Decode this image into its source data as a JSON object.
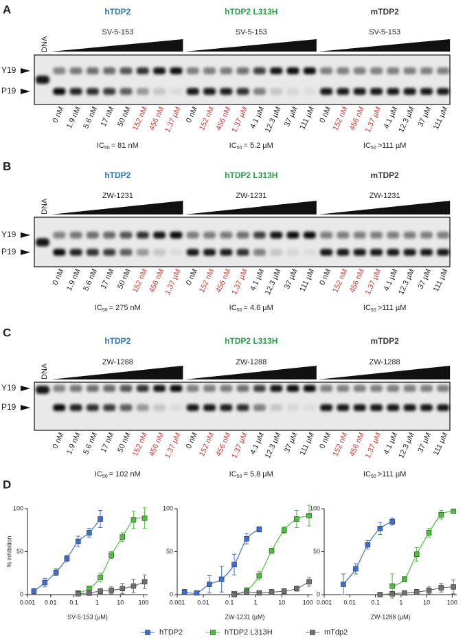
{
  "panels": [
    {
      "label": "A",
      "dna": "DNA",
      "y19": "Y19",
      "p19": "P19",
      "groups": [
        {
          "name": "hTDP2",
          "color": "#2e75b6",
          "compound": "SV-5-153",
          "lanes": [
            {
              "text": "0 nM",
              "color": "#231f20"
            },
            {
              "text": "1.9 nM",
              "color": "#231f20"
            },
            {
              "text": "5.6 nM",
              "color": "#231f20"
            },
            {
              "text": "17 nM",
              "color": "#231f20"
            },
            {
              "text": "50 nM",
              "color": "#231f20"
            },
            {
              "text": "152 nM",
              "color": "#d03a2f"
            },
            {
              "text": "456 nM",
              "color": "#d03a2f"
            },
            {
              "text": "1.37 µM",
              "color": "#d03a2f"
            }
          ],
          "ic50": {
            "symbol": "IC",
            "sub": "50",
            "value": "= 81 nM"
          }
        },
        {
          "name": "hTDP2 L313H",
          "color": "#2a9d48",
          "compound": "SV-5-153",
          "lanes": [
            {
              "text": "0 nM",
              "color": "#231f20"
            },
            {
              "text": "152 nM",
              "color": "#d03a2f"
            },
            {
              "text": "456 nM",
              "color": "#d03a2f"
            },
            {
              "text": "1.37 µM",
              "color": "#d03a2f"
            },
            {
              "text": "4.1 µM",
              "color": "#231f20"
            },
            {
              "text": "12.3 µM",
              "color": "#231f20"
            },
            {
              "text": "37 µM",
              "color": "#231f20"
            },
            {
              "text": "111 µM",
              "color": "#231f20"
            }
          ],
          "ic50": {
            "symbol": "IC",
            "sub": "50",
            "value": "= 5.2 µM"
          }
        },
        {
          "name": "mTDP2",
          "color": "#3a3a3a",
          "compound": "SV-5-153",
          "lanes": [
            {
              "text": "0 nM",
              "color": "#231f20"
            },
            {
              "text": "152 nM",
              "color": "#d03a2f"
            },
            {
              "text": "456 nM",
              "color": "#d03a2f"
            },
            {
              "text": "1.37 µM",
              "color": "#d03a2f"
            },
            {
              "text": "4.1 µM",
              "color": "#231f20"
            },
            {
              "text": "12.3 µM",
              "color": "#231f20"
            },
            {
              "text": "37 µM",
              "color": "#231f20"
            },
            {
              "text": "111 µM",
              "color": "#231f20"
            }
          ],
          "ic50": {
            "symbol": "IC",
            "sub": "50",
            "value": ">111 µM"
          }
        }
      ]
    },
    {
      "label": "B",
      "dna": "DNA",
      "y19": "Y19",
      "p19": "P19",
      "groups": [
        {
          "name": "hTDP2",
          "color": "#2e75b6",
          "compound": "ZW-1231",
          "lanes": [
            {
              "text": "0 nM",
              "color": "#231f20"
            },
            {
              "text": "1.9 nM",
              "color": "#231f20"
            },
            {
              "text": "5.6 nM",
              "color": "#231f20"
            },
            {
              "text": "17 nM",
              "color": "#231f20"
            },
            {
              "text": "50 nM",
              "color": "#231f20"
            },
            {
              "text": "152 nM",
              "color": "#d03a2f"
            },
            {
              "text": "456 nM",
              "color": "#d03a2f"
            },
            {
              "text": "1.37 µM",
              "color": "#d03a2f"
            }
          ],
          "ic50": {
            "symbol": "IC",
            "sub": "50",
            "value": "= 275 nM"
          }
        },
        {
          "name": "hTDP2 L313H",
          "color": "#2a9d48",
          "compound": "ZW-1231",
          "lanes": [
            {
              "text": "0 nM",
              "color": "#231f20"
            },
            {
              "text": "152 nM",
              "color": "#d03a2f"
            },
            {
              "text": "456 nM",
              "color": "#d03a2f"
            },
            {
              "text": "1.37 µM",
              "color": "#d03a2f"
            },
            {
              "text": "4.1 µM",
              "color": "#231f20"
            },
            {
              "text": "12.3 µM",
              "color": "#231f20"
            },
            {
              "text": "37 µM",
              "color": "#231f20"
            },
            {
              "text": "111 µM",
              "color": "#231f20"
            }
          ],
          "ic50": {
            "symbol": "IC",
            "sub": "50",
            "value": "= 4.6 µM"
          }
        },
        {
          "name": "mTDP2",
          "color": "#3a3a3a",
          "compound": "ZW-1231",
          "lanes": [
            {
              "text": "0 nM",
              "color": "#231f20"
            },
            {
              "text": "152 nM",
              "color": "#d03a2f"
            },
            {
              "text": "456 nM",
              "color": "#d03a2f"
            },
            {
              "text": "1.37 µM",
              "color": "#d03a2f"
            },
            {
              "text": "4.1 µM",
              "color": "#231f20"
            },
            {
              "text": "12.3 µM",
              "color": "#231f20"
            },
            {
              "text": "37 µM",
              "color": "#231f20"
            },
            {
              "text": "111 µM",
              "color": "#231f20"
            }
          ],
          "ic50": {
            "symbol": "IC",
            "sub": "50",
            "value": ">111 µM"
          }
        }
      ]
    },
    {
      "label": "C",
      "dna": "DNA",
      "y19": "Y19",
      "p19": "P19",
      "groups": [
        {
          "name": "hTDP2",
          "color": "#2e75b6",
          "compound": "ZW-1288",
          "lanes": [
            {
              "text": "0 nM",
              "color": "#231f20"
            },
            {
              "text": "1.9 nM",
              "color": "#231f20"
            },
            {
              "text": "5.6 nM",
              "color": "#231f20"
            },
            {
              "text": "17 nM",
              "color": "#231f20"
            },
            {
              "text": "50 nM",
              "color": "#231f20"
            },
            {
              "text": "152 nM",
              "color": "#d03a2f"
            },
            {
              "text": "456 nM",
              "color": "#d03a2f"
            },
            {
              "text": "1.37 µM",
              "color": "#d03a2f"
            }
          ],
          "ic50": {
            "symbol": "IC",
            "sub": "50",
            "value": "= 102 nM"
          }
        },
        {
          "name": "hTDP2 L313H",
          "color": "#2a9d48",
          "compound": "ZW-1288",
          "lanes": [
            {
              "text": "0 nM",
              "color": "#231f20"
            },
            {
              "text": "152 nM",
              "color": "#d03a2f"
            },
            {
              "text": "456 nM",
              "color": "#d03a2f"
            },
            {
              "text": "1.37 µM",
              "color": "#d03a2f"
            },
            {
              "text": "4.1 µM",
              "color": "#231f20"
            },
            {
              "text": "12.3 µM",
              "color": "#231f20"
            },
            {
              "text": "37 µM",
              "color": "#231f20"
            },
            {
              "text": "111 µM",
              "color": "#231f20"
            }
          ],
          "ic50": {
            "symbol": "IC",
            "sub": "50",
            "value": "= 5.8 µM"
          }
        },
        {
          "name": "mTDP2",
          "color": "#3a3a3a",
          "compound": "ZW-1288",
          "lanes": [
            {
              "text": "0 nM",
              "color": "#231f20"
            },
            {
              "text": "152 nM",
              "color": "#d03a2f"
            },
            {
              "text": "456 nM",
              "color": "#d03a2f"
            },
            {
              "text": "1.37 µM",
              "color": "#d03a2f"
            },
            {
              "text": "4.1 µM",
              "color": "#231f20"
            },
            {
              "text": "12.3 µM",
              "color": "#231f20"
            },
            {
              "text": "37 µM",
              "color": "#231f20"
            },
            {
              "text": "111 µM",
              "color": "#231f20"
            }
          ],
          "ic50": {
            "symbol": "IC",
            "sub": "50",
            "value": ">111 µM"
          }
        }
      ]
    }
  ],
  "panel_d_label": "D",
  "chart_data": [
    {
      "type": "scatter",
      "xlabel": "SV-5-153 (µM)",
      "ylabel": "% inhibition",
      "xlog": true,
      "legend": "bottom",
      "xlim": [
        0.001,
        150
      ],
      "xticks": [
        0.001,
        0.01,
        0.1,
        1,
        10,
        100
      ],
      "ylim": [
        0,
        100
      ],
      "yticks": [
        0,
        50,
        100
      ],
      "series": [
        {
          "name": "hTDP2",
          "color": "#3d6fd0",
          "x": [
            0.0019,
            0.0056,
            0.017,
            0.05,
            0.152,
            0.456,
            1.37
          ],
          "values": [
            4,
            14,
            26,
            42,
            62,
            72,
            88
          ],
          "errors": [
            3,
            5,
            4,
            4,
            6,
            5,
            10
          ]
        },
        {
          "name": "hTDP2 L313H",
          "color": "#4cc13b",
          "x": [
            0.152,
            0.456,
            1.37,
            4.1,
            12.3,
            37,
            111
          ],
          "values": [
            2,
            7,
            20,
            46,
            67,
            87,
            89
          ],
          "errors": [
            2,
            3,
            5,
            4,
            5,
            10,
            12
          ]
        },
        {
          "name": "mTdp2",
          "color": "#707070",
          "x": [
            0.152,
            0.456,
            1.37,
            4.1,
            12.3,
            37,
            111
          ],
          "values": [
            1,
            2,
            4,
            5,
            7,
            10,
            15
          ],
          "errors": [
            2,
            3,
            3,
            4,
            6,
            8,
            8
          ]
        }
      ]
    },
    {
      "type": "scatter",
      "xlabel": "ZW-1231 (µM)",
      "xlog": true,
      "xlim": [
        0.001,
        150
      ],
      "xticks": [
        0.001,
        0.01,
        0.1,
        1,
        10,
        100
      ],
      "ylim": [
        0,
        100
      ],
      "yticks": [
        0,
        50,
        100
      ],
      "series": [
        {
          "color": "#3d6fd0",
          "x": [
            0.0019,
            0.0056,
            0.017,
            0.05,
            0.152,
            0.456,
            1.37
          ],
          "values": [
            3,
            2,
            12,
            18,
            35,
            65,
            76
          ],
          "errors": [
            3,
            2,
            10,
            15,
            12,
            6,
            3
          ]
        },
        {
          "color": "#4cc13b",
          "x": [
            0.152,
            0.456,
            1.37,
            4.1,
            12.3,
            37,
            111
          ],
          "values": [
            1,
            5,
            22,
            51,
            75,
            88,
            92
          ],
          "errors": [
            2,
            3,
            5,
            3,
            4,
            10,
            12
          ]
        },
        {
          "color": "#707070",
          "x": [
            0.152,
            0.456,
            1.37,
            4.1,
            12.3,
            37,
            111
          ],
          "values": [
            0,
            3,
            2,
            3,
            4,
            7,
            15
          ],
          "errors": [
            2,
            2,
            2,
            3,
            3,
            3,
            5
          ]
        }
      ]
    },
    {
      "type": "scatter",
      "xlabel": "ZW-1288 (µM)",
      "xlog": true,
      "xlim": [
        0.001,
        150
      ],
      "xticks": [
        0.001,
        0.01,
        0.1,
        1,
        10,
        100
      ],
      "ylim": [
        0,
        100
      ],
      "yticks": [
        0,
        50,
        100
      ],
      "series": [
        {
          "color": "#3d6fd0",
          "x": [
            0.0056,
            0.017,
            0.05,
            0.152,
            0.456
          ],
          "values": [
            12,
            30,
            58,
            77,
            85
          ],
          "errors": [
            12,
            6,
            5,
            7,
            4
          ]
        },
        {
          "color": "#4cc13b",
          "x": [
            0.456,
            1.37,
            4.1,
            12.3,
            37,
            111
          ],
          "values": [
            10,
            18,
            47,
            72,
            93,
            97
          ],
          "errors": [
            14,
            3,
            8,
            5,
            5,
            2
          ]
        },
        {
          "color": "#707070",
          "x": [
            0.152,
            0.456,
            1.37,
            4.1,
            12.3,
            37,
            111
          ],
          "values": [
            0,
            1,
            2,
            3,
            5,
            8,
            9
          ],
          "errors": [
            1,
            2,
            2,
            3,
            4,
            5,
            8
          ]
        }
      ]
    }
  ]
}
